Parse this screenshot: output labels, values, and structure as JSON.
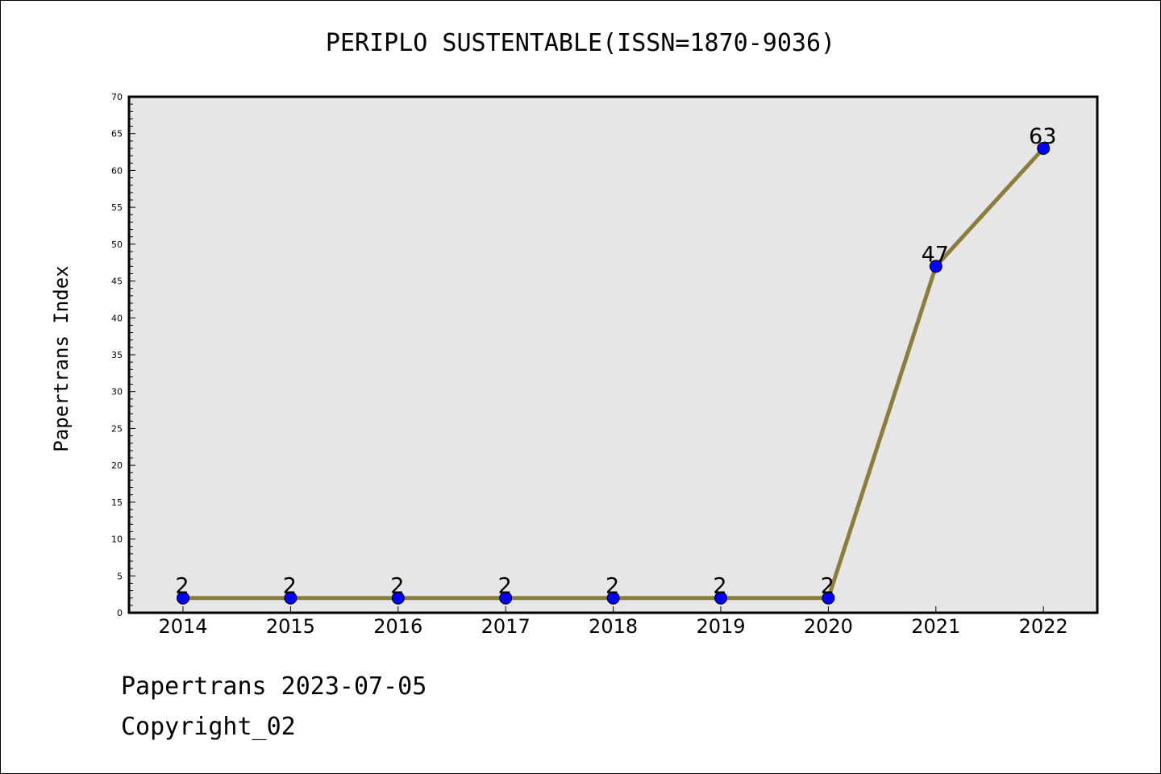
{
  "footer": {
    "date_line": "Papertrans 2023-07-05",
    "copyright_line": "Copyright_02"
  },
  "chart_data": {
    "type": "line",
    "title": "PERIPLO SUSTENTABLE(ISSN=1870-9036)",
    "xlabel": "",
    "ylabel": "Papertrans Index",
    "categories": [
      "2014",
      "2015",
      "2016",
      "2017",
      "2018",
      "2019",
      "2020",
      "2021",
      "2022"
    ],
    "series": [
      {
        "values": [
          2,
          2,
          2,
          2,
          2,
          2,
          2,
          47,
          63
        ],
        "line_color": "#8b7d3a",
        "marker_color": "#0000ff"
      }
    ],
    "data_labels": [
      "2",
      "2",
      "2",
      "2",
      "2",
      "2",
      "2",
      "47",
      "63"
    ],
    "ylim": [
      0,
      70
    ],
    "yticks": [
      0,
      5,
      10,
      15,
      20,
      25,
      30,
      35,
      40,
      45,
      50,
      55,
      60,
      65,
      70
    ],
    "plot_background": "#e6e6e6",
    "grid": false,
    "legend": "none"
  }
}
